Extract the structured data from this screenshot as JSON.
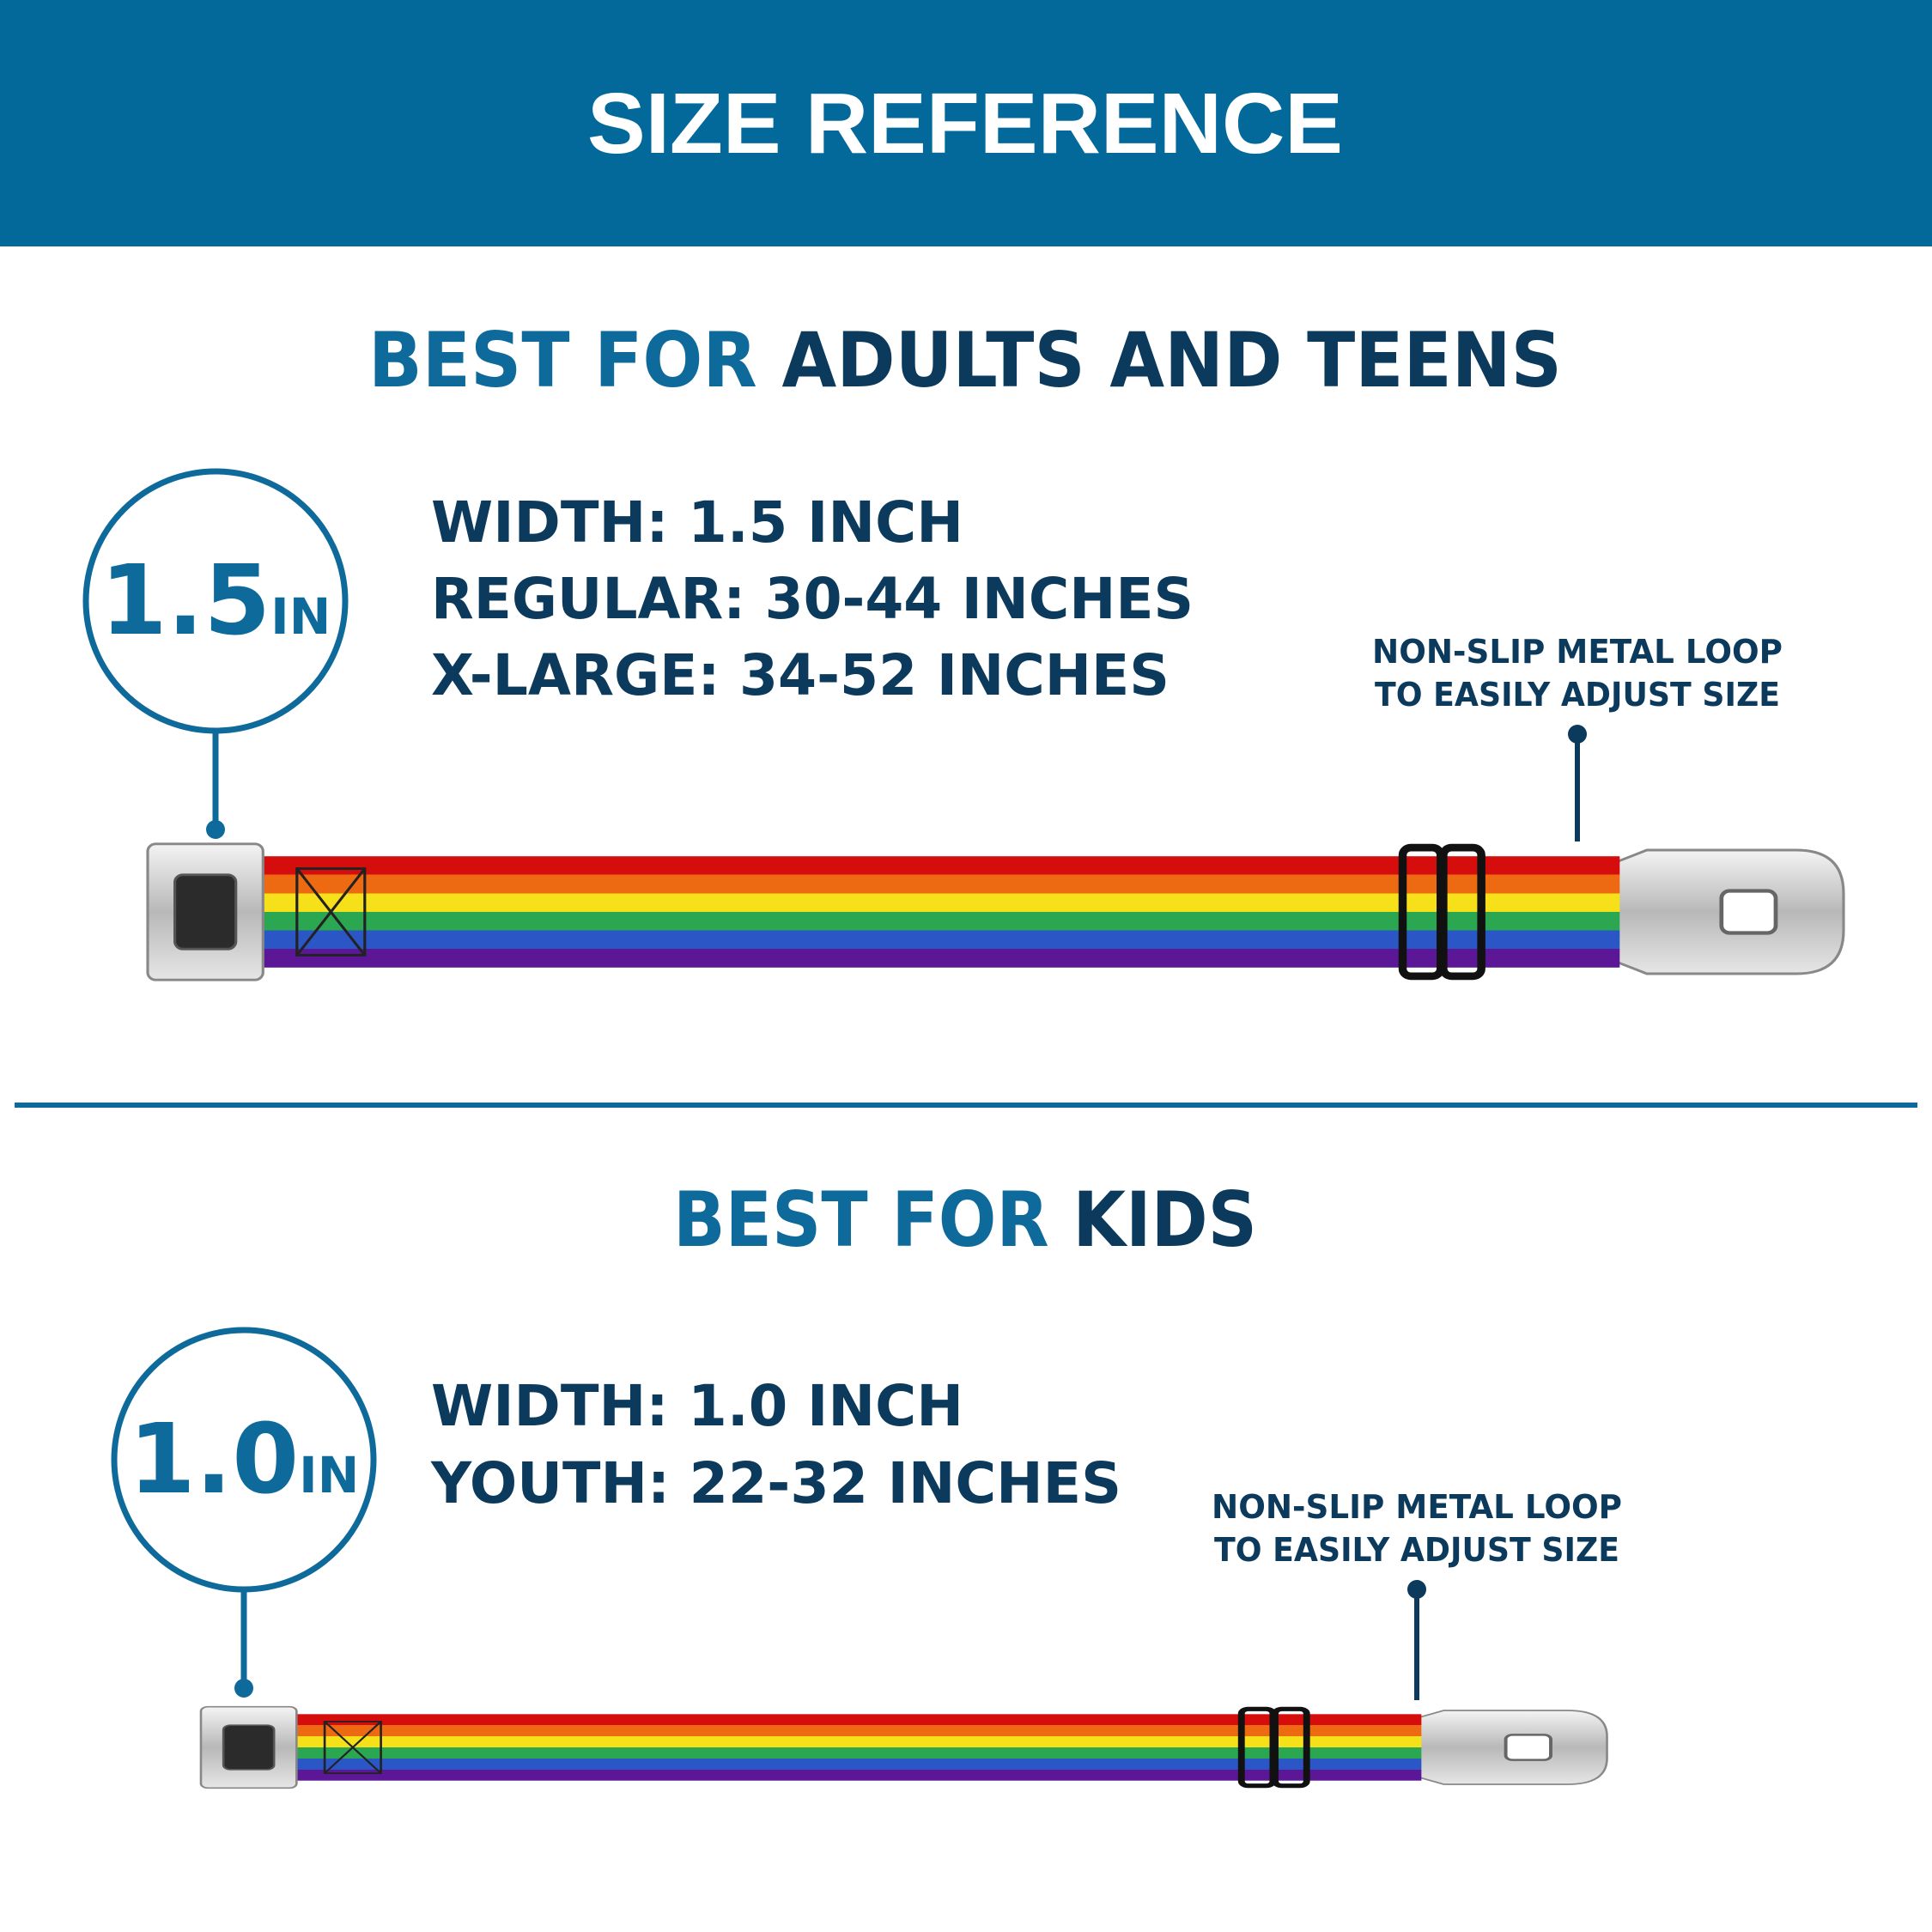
{
  "header": {
    "title": "SIZE REFERENCE"
  },
  "sections": [
    {
      "heading": {
        "lead": "BEST FOR",
        "audience": "ADULTS AND TEENS"
      },
      "badge": {
        "number": "1.5",
        "unit": "IN"
      },
      "specs": [
        "WIDTH: 1.5 INCH",
        "REGULAR: 30-44 INCHES",
        "X-LARGE: 34-52 INCHES"
      ],
      "callout": [
        "NON-SLIP METAL LOOP",
        "TO EASILY ADJUST SIZE"
      ]
    },
    {
      "heading": {
        "lead": "BEST FOR",
        "audience": "KIDS"
      },
      "badge": {
        "number": "1.0",
        "unit": "IN"
      },
      "specs": [
        "WIDTH: 1.0 INCH",
        "YOUTH: 22-32 INCHES"
      ],
      "callout": [
        "NON-SLIP METAL LOOP",
        "TO EASILY ADJUST SIZE"
      ]
    }
  ]
}
